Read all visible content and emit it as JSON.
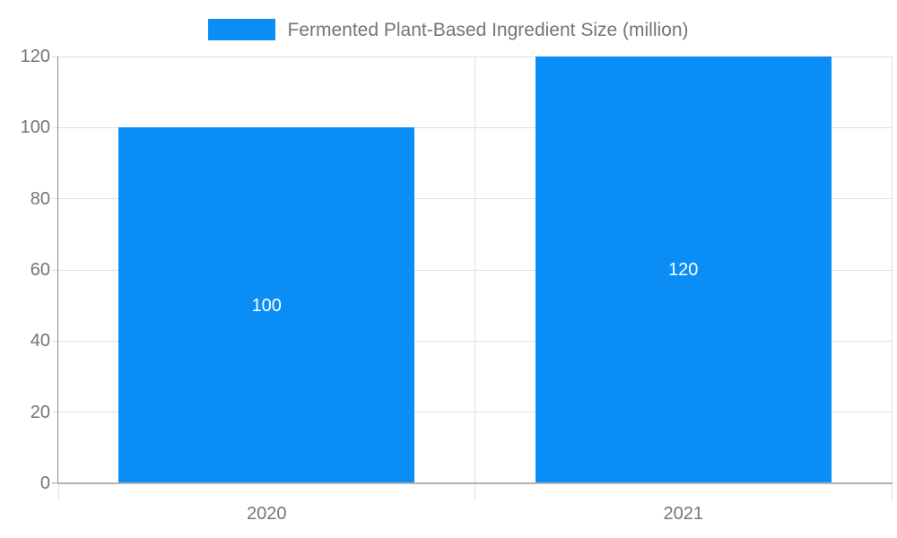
{
  "chart_data": {
    "type": "bar",
    "title": "",
    "legend": "Fermented Plant-Based Ingredient Size (million)",
    "legend_position": "top",
    "categories": [
      "2020",
      "2021"
    ],
    "values": [
      100,
      120
    ],
    "value_labels": [
      "100",
      "120"
    ],
    "xlabel": "",
    "ylabel": "",
    "ylim": [
      0,
      120
    ],
    "yticks": [
      0,
      20,
      40,
      60,
      80,
      100,
      120
    ],
    "grid": true,
    "colors": {
      "bar": "#0a8df5",
      "value_label": "#ffffff",
      "axis_text": "#757575",
      "gridline": "#e0e0e0",
      "y_axis_line": "#8a8a8a",
      "x_axis_line": "#b3b3b3",
      "background": "#ffffff"
    }
  }
}
